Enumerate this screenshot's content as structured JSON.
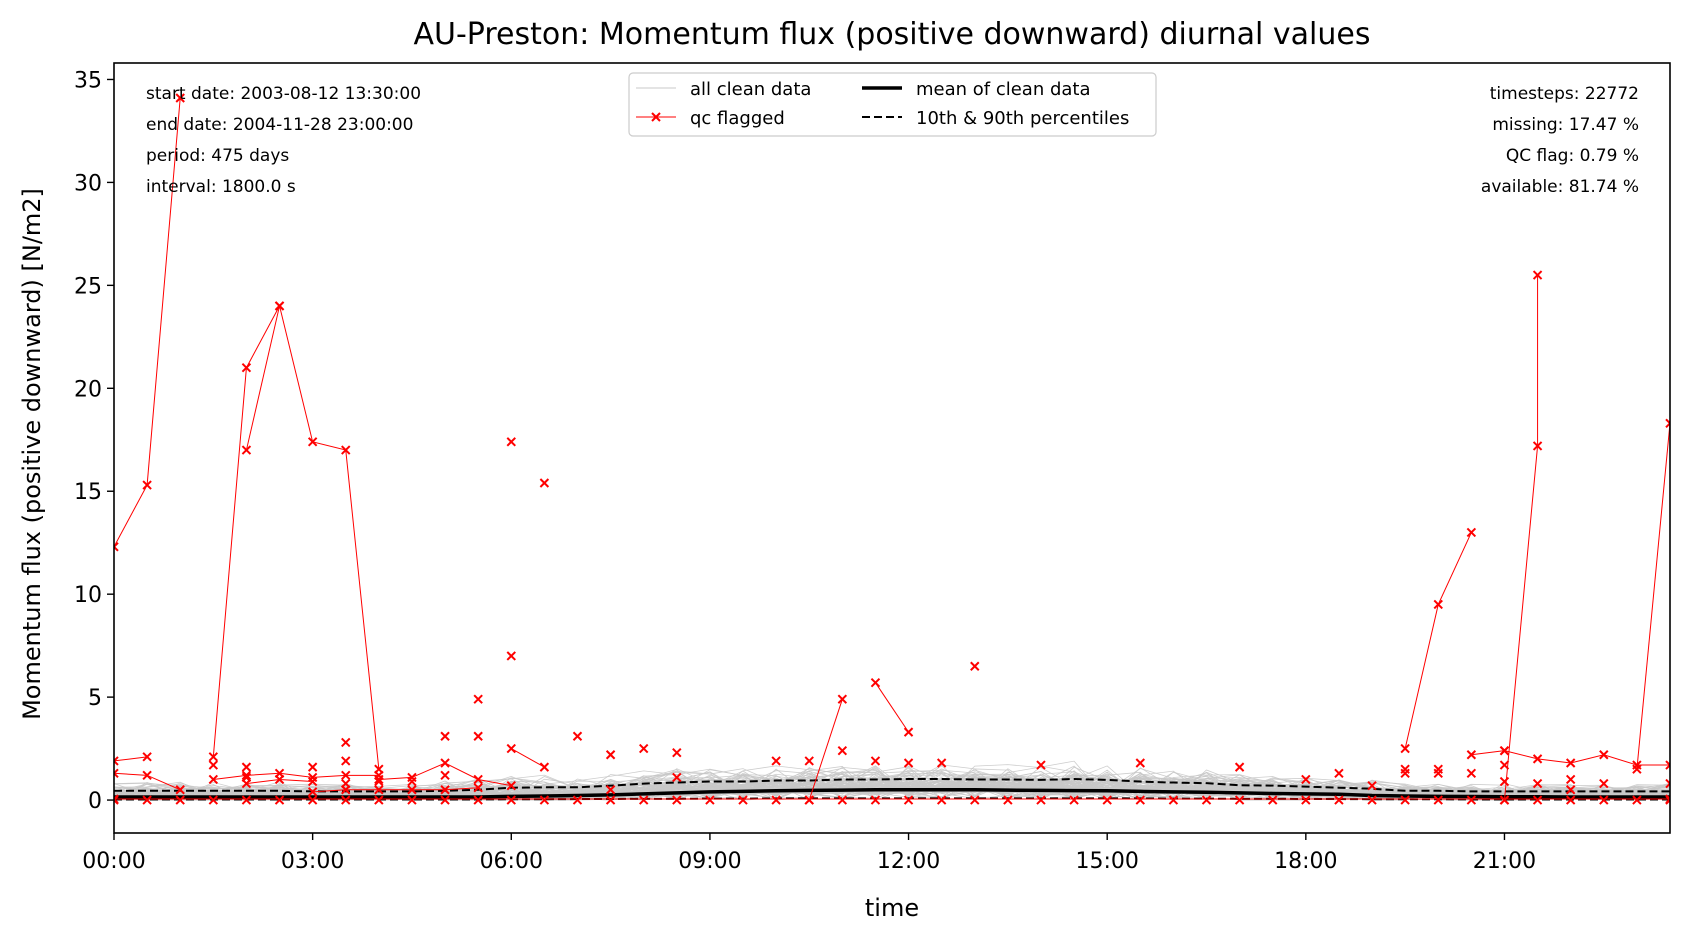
{
  "chart_data": {
    "type": "line",
    "title": "AU-Preston: Momentum flux (positive downward) diurnal values",
    "xlabel": "time",
    "ylabel": "Momentum flux (positive downward) [N/m2]",
    "xlim": [
      0,
      23.5
    ],
    "ylim": [
      -1.6,
      35.8
    ],
    "x_ticks": [
      {
        "value": 0,
        "label": "00:00"
      },
      {
        "value": 3,
        "label": "03:00"
      },
      {
        "value": 6,
        "label": "06:00"
      },
      {
        "value": 9,
        "label": "09:00"
      },
      {
        "value": 12,
        "label": "12:00"
      },
      {
        "value": 15,
        "label": "15:00"
      },
      {
        "value": 18,
        "label": "18:00"
      },
      {
        "value": 21,
        "label": "21:00"
      }
    ],
    "y_ticks": [
      {
        "value": 0,
        "label": "0"
      },
      {
        "value": 5,
        "label": "5"
      },
      {
        "value": 10,
        "label": "10"
      },
      {
        "value": 15,
        "label": "15"
      },
      {
        "value": 20,
        "label": "20"
      },
      {
        "value": 25,
        "label": "25"
      },
      {
        "value": 30,
        "label": "30"
      },
      {
        "value": 35,
        "label": "35"
      }
    ],
    "grid": false,
    "legend": {
      "placement": "top-center",
      "entries": [
        {
          "label": "all clean data",
          "style": "thin-gray-line"
        },
        {
          "label": "mean of clean data",
          "style": "thick-black-line"
        },
        {
          "label": "qc flagged",
          "style": "red-line-x-marker"
        },
        {
          "label": "10th & 90th percentiles",
          "style": "black-dashed-line"
        }
      ]
    },
    "stats_left": [
      "start date: 2003-08-12 13:30:00",
      "end date: 2004-11-28 23:00:00",
      "period: 475 days",
      "interval: 1800.0 s"
    ],
    "stats_right": [
      "timesteps: 22772",
      "missing: 17.47 %",
      "QC flag: 0.79 %",
      "available: 81.74 %"
    ],
    "colors": {
      "clean": "#c8c8c8",
      "mean": "#000000",
      "percentile": "#000000",
      "flagged": "#ff0000"
    },
    "x": [
      0,
      0.5,
      1,
      1.5,
      2,
      2.5,
      3,
      3.5,
      4,
      4.5,
      5,
      5.5,
      6,
      6.5,
      7,
      7.5,
      8,
      8.5,
      9,
      9.5,
      10,
      10.5,
      11,
      11.5,
      12,
      12.5,
      13,
      13.5,
      14,
      14.5,
      15,
      15.5,
      16,
      16.5,
      17,
      17.5,
      18,
      18.5,
      19,
      19.5,
      20,
      20.5,
      21,
      21.5,
      22,
      22.5,
      23,
      23.5
    ],
    "series": [
      {
        "name": "mean of clean data",
        "values": [
          0.15,
          0.15,
          0.15,
          0.15,
          0.15,
          0.15,
          0.15,
          0.15,
          0.15,
          0.15,
          0.15,
          0.15,
          0.18,
          0.2,
          0.22,
          0.25,
          0.3,
          0.35,
          0.4,
          0.42,
          0.45,
          0.47,
          0.48,
          0.5,
          0.5,
          0.5,
          0.5,
          0.48,
          0.47,
          0.46,
          0.45,
          0.42,
          0.4,
          0.38,
          0.35,
          0.32,
          0.3,
          0.28,
          0.22,
          0.2,
          0.18,
          0.17,
          0.16,
          0.16,
          0.15,
          0.15,
          0.15,
          0.15
        ]
      },
      {
        "name": "90th percentile",
        "values": [
          0.45,
          0.45,
          0.45,
          0.45,
          0.45,
          0.45,
          0.42,
          0.42,
          0.42,
          0.42,
          0.45,
          0.5,
          0.6,
          0.62,
          0.62,
          0.7,
          0.8,
          0.85,
          0.9,
          0.9,
          0.95,
          0.95,
          1.0,
          1.0,
          1.02,
          1.02,
          1.0,
          1.0,
          0.98,
          1.02,
          0.98,
          0.9,
          0.85,
          0.82,
          0.72,
          0.7,
          0.65,
          0.6,
          0.55,
          0.45,
          0.45,
          0.42,
          0.42,
          0.42,
          0.42,
          0.42,
          0.42,
          0.42
        ]
      },
      {
        "name": "10th percentile",
        "values": [
          0.03,
          0.03,
          0.03,
          0.03,
          0.03,
          0.03,
          0.03,
          0.03,
          0.03,
          0.03,
          0.03,
          0.03,
          0.04,
          0.04,
          0.05,
          0.05,
          0.06,
          0.06,
          0.07,
          0.07,
          0.08,
          0.08,
          0.08,
          0.08,
          0.08,
          0.08,
          0.08,
          0.08,
          0.08,
          0.08,
          0.08,
          0.08,
          0.07,
          0.07,
          0.06,
          0.06,
          0.05,
          0.05,
          0.04,
          0.04,
          0.04,
          0.03,
          0.03,
          0.03,
          0.03,
          0.03,
          0.03,
          0.03
        ]
      }
    ],
    "qc_flagged_lines": [
      [
        [
          0,
          12.3
        ],
        [
          0.5,
          15.3
        ],
        [
          1,
          34.1
        ]
      ],
      [
        [
          1.5,
          2.1
        ],
        [
          2,
          21.0
        ],
        [
          2.5,
          24.0
        ],
        [
          3,
          17.4
        ],
        [
          3.5,
          17.0
        ],
        [
          4,
          1.5
        ]
      ],
      [
        [
          2,
          17.0
        ],
        [
          2.5,
          24.0
        ]
      ],
      [
        [
          0,
          1.9
        ],
        [
          0.5,
          2.1
        ]
      ],
      [
        [
          0,
          1.3
        ],
        [
          0.5,
          1.2
        ],
        [
          1,
          0.5
        ]
      ],
      [
        [
          1.5,
          1.0
        ],
        [
          2,
          1.2
        ],
        [
          2.5,
          1.3
        ],
        [
          3,
          1.1
        ],
        [
          3.5,
          1.2
        ],
        [
          4,
          1.2
        ]
      ],
      [
        [
          2,
          0.8
        ],
        [
          2.5,
          1.0
        ],
        [
          3,
          0.9
        ]
      ],
      [
        [
          4,
          1.0
        ],
        [
          4.5,
          1.1
        ],
        [
          5,
          1.8
        ],
        [
          5.5,
          1.0
        ],
        [
          6,
          0.7
        ]
      ],
      [
        [
          3,
          0.4
        ],
        [
          3.5,
          0.5
        ],
        [
          4,
          0.5
        ],
        [
          4.5,
          0.5
        ],
        [
          5,
          0.5
        ],
        [
          5.5,
          0.6
        ]
      ],
      [
        [
          6,
          2.5
        ],
        [
          6.5,
          1.6
        ]
      ],
      [
        [
          10.5,
          0.0
        ],
        [
          11,
          4.9
        ]
      ],
      [
        [
          11.5,
          5.7
        ],
        [
          12,
          3.3
        ]
      ],
      [
        [
          19.5,
          2.5
        ],
        [
          20,
          9.5
        ],
        [
          20.5,
          13.0
        ]
      ],
      [
        [
          21,
          2.4
        ],
        [
          21.5,
          2.0
        ],
        [
          22,
          1.8
        ],
        [
          22.5,
          2.2
        ],
        [
          23,
          1.7
        ],
        [
          23.5,
          1.7
        ]
      ],
      [
        [
          20.5,
          2.2
        ],
        [
          21,
          2.4
        ]
      ],
      [
        [
          21,
          0.0
        ],
        [
          21.5,
          17.2
        ],
        [
          21.5,
          25.5
        ]
      ],
      [
        [
          23,
          1.5
        ],
        [
          23.5,
          18.3
        ]
      ],
      [
        [
          0,
          0.05
        ],
        [
          23.5,
          0.05
        ]
      ]
    ],
    "qc_flagged_points": [
      [
        0,
        0.0
      ],
      [
        0.5,
        0.0
      ],
      [
        1,
        0.0
      ],
      [
        1.5,
        0.0
      ],
      [
        2,
        0.0
      ],
      [
        2.5,
        0.0
      ],
      [
        3,
        0.0
      ],
      [
        3.5,
        0.0
      ],
      [
        4,
        0.0
      ],
      [
        4.5,
        0.0
      ],
      [
        5,
        0.0
      ],
      [
        5.5,
        0.0
      ],
      [
        6,
        0.0
      ],
      [
        6.5,
        0.0
      ],
      [
        7,
        0.0
      ],
      [
        7.5,
        0.0
      ],
      [
        8,
        0.0
      ],
      [
        8.5,
        0.0
      ],
      [
        9,
        0.0
      ],
      [
        9.5,
        0.0
      ],
      [
        10,
        0.0
      ],
      [
        10.5,
        0.0
      ],
      [
        11,
        0.0
      ],
      [
        11.5,
        0.0
      ],
      [
        12,
        0.0
      ],
      [
        12.5,
        0.0
      ],
      [
        13,
        0.0
      ],
      [
        13.5,
        0.0
      ],
      [
        14,
        0.0
      ],
      [
        14.5,
        0.0
      ],
      [
        15,
        0.0
      ],
      [
        15.5,
        0.0
      ],
      [
        16,
        0.0
      ],
      [
        16.5,
        0.0
      ],
      [
        17,
        0.0
      ],
      [
        17.5,
        0.0
      ],
      [
        18,
        0.0
      ],
      [
        18.5,
        0.0
      ],
      [
        19,
        0.0
      ],
      [
        19.5,
        0.0
      ],
      [
        20,
        0.0
      ],
      [
        20.5,
        0.0
      ],
      [
        21,
        0.0
      ],
      [
        21.5,
        0.0
      ],
      [
        22,
        0.0
      ],
      [
        22.5,
        0.0
      ],
      [
        23,
        0.0
      ],
      [
        23.5,
        0.0
      ],
      [
        1.5,
        1.7
      ],
      [
        2,
        1.6
      ],
      [
        2,
        1.1
      ],
      [
        3,
        1.6
      ],
      [
        3.5,
        2.8
      ],
      [
        3.5,
        1.9
      ],
      [
        3.5,
        0.8
      ],
      [
        4,
        0.9
      ],
      [
        4.5,
        0.9
      ],
      [
        5,
        3.1
      ],
      [
        5,
        1.2
      ],
      [
        5.5,
        4.9
      ],
      [
        5.5,
        3.1
      ],
      [
        6,
        17.4
      ],
      [
        6,
        7.0
      ],
      [
        6.5,
        15.4
      ],
      [
        7,
        3.1
      ],
      [
        7.5,
        2.2
      ],
      [
        7.5,
        0.5
      ],
      [
        8,
        2.5
      ],
      [
        8.5,
        2.3
      ],
      [
        8.5,
        1.1
      ],
      [
        10,
        1.9
      ],
      [
        10.5,
        1.9
      ],
      [
        11,
        2.4
      ],
      [
        11.5,
        1.9
      ],
      [
        12,
        1.8
      ],
      [
        12.5,
        1.8
      ],
      [
        13,
        6.5
      ],
      [
        14,
        1.7
      ],
      [
        15.5,
        1.8
      ],
      [
        17,
        1.6
      ],
      [
        18,
        1.0
      ],
      [
        18.5,
        1.3
      ],
      [
        19,
        0.7
      ],
      [
        19.5,
        1.5
      ],
      [
        19.5,
        1.3
      ],
      [
        20,
        1.5
      ],
      [
        20,
        1.3
      ],
      [
        20.5,
        1.3
      ],
      [
        21,
        1.7
      ],
      [
        21,
        0.9
      ],
      [
        21.5,
        0.8
      ],
      [
        22,
        1.0
      ],
      [
        22,
        0.5
      ],
      [
        22.5,
        0.8
      ],
      [
        23.5,
        0.8
      ]
    ]
  }
}
